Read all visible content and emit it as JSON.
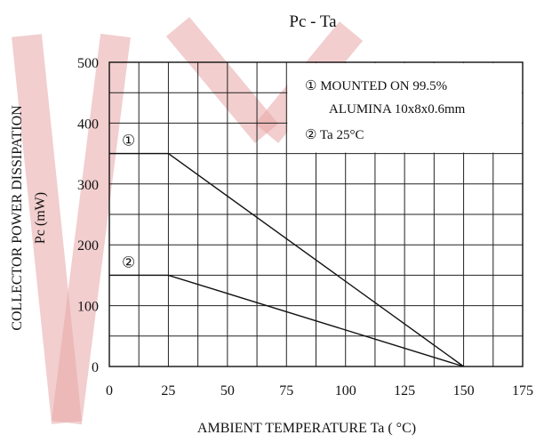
{
  "chart_data": {
    "type": "line",
    "title": "Pc   -  Ta",
    "xlabel": "AMBIENT TEMPERATURE Ta  ( °C)",
    "ylabel_line1": "COLLECTOR POWER DISSIPATION",
    "ylabel_line2": "Pc   (mW)",
    "xlim": [
      0,
      175
    ],
    "ylim": [
      0,
      500
    ],
    "xticks": [
      "0",
      "25",
      "50",
      "75",
      "100",
      "125",
      "150",
      "175"
    ],
    "yticks": [
      "0",
      "100",
      "200",
      "300",
      "400",
      "500"
    ],
    "grid": true,
    "series": [
      {
        "marker": "①",
        "x": [
          0,
          25,
          150
        ],
        "y": [
          350,
          350,
          0
        ]
      },
      {
        "marker": "②",
        "x": [
          0,
          25,
          150
        ],
        "y": [
          150,
          150,
          0
        ]
      }
    ],
    "legend": [
      "① MOUNTED ON 99.5%",
      "ALUMINA 10x8x0.6mm",
      "② Ta  25°C"
    ]
  }
}
